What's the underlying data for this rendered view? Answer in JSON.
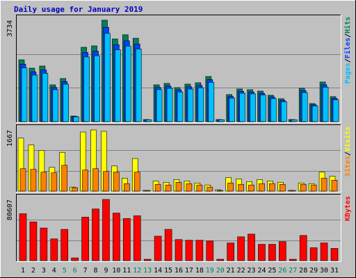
{
  "chart_data": [
    {
      "type": "bar",
      "title": "Daily usage for January 2019",
      "legend_separator": "/",
      "ylim": [
        0,
        3734
      ],
      "yticks": [
        3734
      ],
      "series": [
        {
          "name": "Hits",
          "color": "#00805c",
          "values": [
            2276,
            1969,
            2046,
            1355,
            1586,
            205,
            2736,
            2788,
            3734,
            3043,
            3197,
            3069,
            77,
            1355,
            1407,
            1253,
            1381,
            1432,
            1662,
            77,
            997,
            1202,
            1176,
            1125,
            972,
            844,
            77,
            1228,
            665,
            1458,
            921
          ]
        },
        {
          "name": "Files",
          "color": "#0040ff",
          "values": [
            2117,
            1831,
            1903,
            1260,
            1475,
            191,
            2544,
            2593,
            3473,
            2830,
            2973,
            2854,
            72,
            1260,
            1309,
            1165,
            1284,
            1332,
            1546,
            72,
            927,
            1118,
            1094,
            1046,
            904,
            785,
            72,
            1142,
            618,
            1356,
            857
          ]
        },
        {
          "name": "Pages",
          "color": "#00c0ff",
          "values": [
            1980,
            1713,
            1780,
            1179,
            1380,
            178,
            2380,
            2426,
            3249,
            2647,
            2781,
            2670,
            67,
            1179,
            1224,
            1090,
            1201,
            1246,
            1446,
            67,
            867,
            1046,
            1023,
            979,
            846,
            734,
            67,
            1068,
            579,
            1268,
            801
          ]
        }
      ]
    },
    {
      "type": "bar",
      "legend_separator": "/",
      "ylim": [
        0,
        1667
      ],
      "yticks": [
        1667
      ],
      "series": [
        {
          "name": "Visits",
          "color": "#ffff00",
          "values": [
            1445,
            1259,
            1111,
            648,
            1056,
            111,
            1611,
            1667,
            1630,
            685,
            352,
            889,
            19,
            278,
            241,
            315,
            278,
            222,
            167,
            37,
            370,
            333,
            259,
            315,
            278,
            241,
            19,
            222,
            204,
            519,
            407
          ]
        },
        {
          "name": "Sites",
          "color": "#ff8000",
          "values": [
            611,
            593,
            519,
            500,
            704,
            93,
            574,
            611,
            537,
            519,
            204,
            519,
            19,
            185,
            167,
            241,
            204,
            167,
            111,
            19,
            222,
            185,
            167,
            204,
            204,
            185,
            19,
            185,
            167,
            352,
            296
          ]
        }
      ]
    },
    {
      "type": "bar",
      "ylim": [
        0,
        80607
      ],
      "yticks": [
        80607
      ],
      "categories": [
        "1",
        "2",
        "3",
        "4",
        "5",
        "6",
        "7",
        "8",
        "9",
        "10",
        "11",
        "12",
        "13",
        "14",
        "15",
        "16",
        "17",
        "18",
        "19",
        "20",
        "21",
        "22",
        "23",
        "24",
        "25",
        "26",
        "27",
        "28",
        "29",
        "30",
        "31"
      ],
      "category_colors": [
        "#000000",
        "#000000",
        "#000000",
        "#000000",
        "#00805c",
        "#00805c",
        "#000000",
        "#000000",
        "#000000",
        "#000000",
        "#000000",
        "#00805c",
        "#00805c",
        "#000000",
        "#000000",
        "#000000",
        "#000000",
        "#000000",
        "#00805c",
        "#00805c",
        "#000000",
        "#000000",
        "#000000",
        "#000000",
        "#000000",
        "#00805c",
        "#00805c",
        "#000000",
        "#000000",
        "#000000",
        "#000000"
      ],
      "series": [
        {
          "name": "KBytes",
          "color": "#ff0000",
          "values": [
            61800,
            51050,
            43000,
            28660,
            41200,
            3580,
            57320,
            68070,
            80607,
            62700,
            55530,
            59110,
            1790,
            32240,
            41200,
            27770,
            26870,
            26870,
            25970,
            1790,
            23290,
            31350,
            34930,
            21500,
            21500,
            25080,
            1790,
            33140,
            17020,
            23290,
            16120
          ]
        }
      ]
    }
  ]
}
